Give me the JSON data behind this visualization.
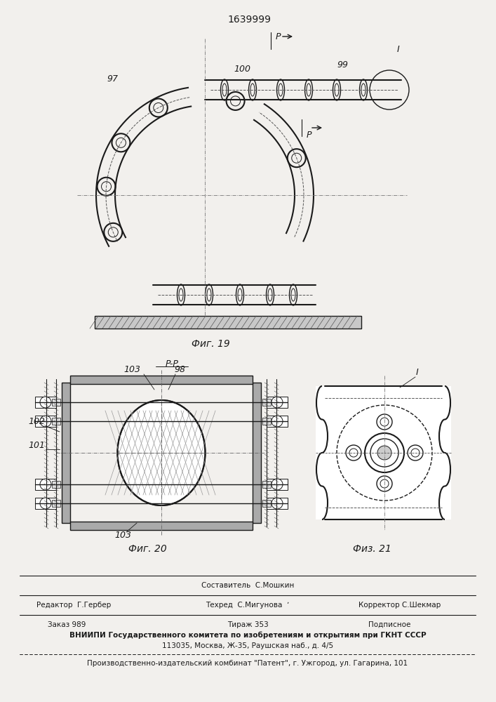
{
  "title": "1639999",
  "bg_color": "#f2f0ed",
  "fig19_caption": "Фиг. 19",
  "fig20_caption": "Фиг. 20",
  "fig21_caption": "Физ. 21",
  "label_97": "97",
  "label_99": "99",
  "label_100": "100",
  "label_101": "101",
  "label_102": "102",
  "label_103": "103",
  "label_98": "98",
  "label_I": "I",
  "label_R": "P",
  "label_RR": "P-P",
  "footer_line1": "Составитель  С.Мошкин",
  "footer_line2_left": "Редактор  Г.Гербер",
  "footer_line2_mid": "Техред  С.Мигунова  ʼ",
  "footer_line2_right": "Корректор С.Шекмар",
  "footer_line3_left": "Заказ 989",
  "footer_line3_mid": "Тираж 353",
  "footer_line3_right": "Подписное",
  "footer_line4": "ВНИИПИ Государственного комитета по изобретениям и открытиям при ГКНТ СССР",
  "footer_line5": "113035, Москва, Ж-35, Раушская наб., д. 4/5",
  "footer_line6": "Производственно-издательский комбинат \"Патент\", г. Ужгород, ул. Гагарина, 101"
}
